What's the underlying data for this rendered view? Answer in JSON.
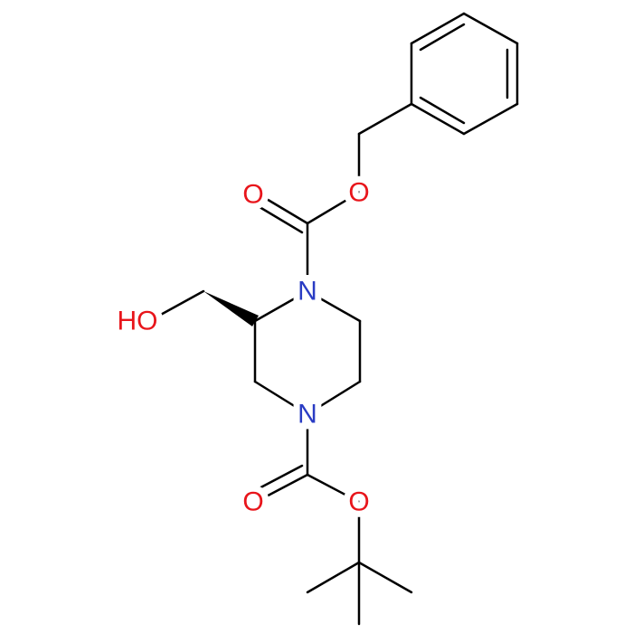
{
  "atoms": [
    {
      "label": "O"
    },
    {
      "label": "O"
    },
    {
      "label": "N"
    },
    {
      "label": "HO"
    },
    {
      "label": "N"
    },
    {
      "label": "O"
    },
    {
      "label": "O"
    }
  ]
}
